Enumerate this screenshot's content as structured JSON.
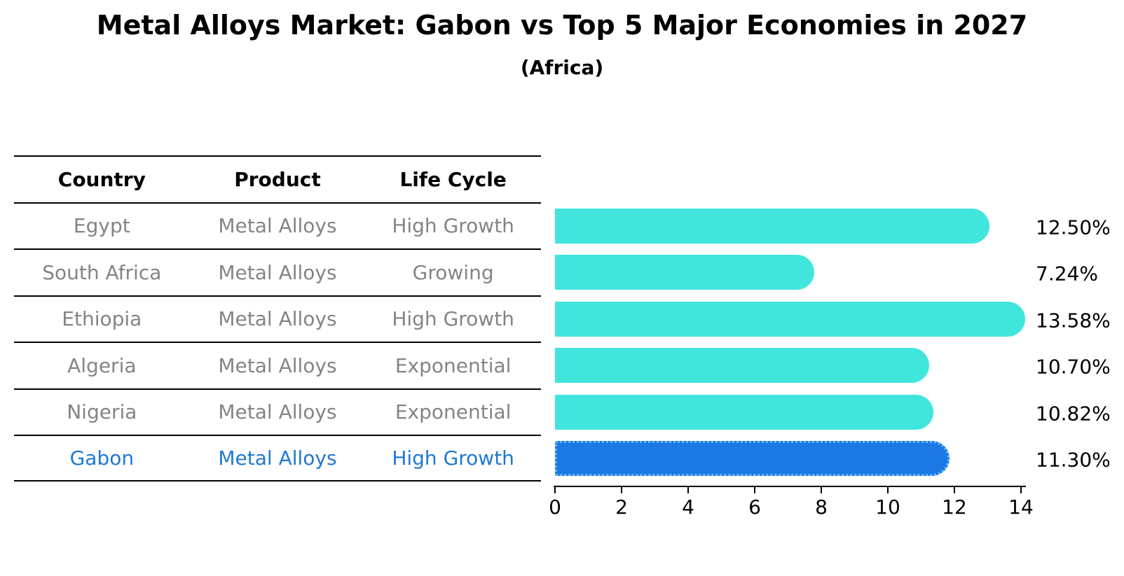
{
  "title": "Metal Alloys Market: Gabon vs Top 5 Major Economies in 2027",
  "subtitle": "(Africa)",
  "table": {
    "headers": [
      "Country",
      "Product",
      "Life Cycle"
    ],
    "rows": [
      {
        "country": "Egypt",
        "product": "Metal Alloys",
        "life_cycle": "High Growth"
      },
      {
        "country": "South Africa",
        "product": "Metal Alloys",
        "life_cycle": "Growing"
      },
      {
        "country": "Ethiopia",
        "product": "Metal Alloys",
        "life_cycle": "High Growth"
      },
      {
        "country": "Algeria",
        "product": "Metal Alloys",
        "life_cycle": "Exponential"
      },
      {
        "country": "Nigeria",
        "product": "Metal Alloys",
        "life_cycle": "Exponential"
      },
      {
        "country": "Gabon",
        "product": "Metal Alloys",
        "life_cycle": "High Growth"
      }
    ],
    "highlight_row_index": 5
  },
  "chart_data": {
    "type": "bar",
    "orientation": "horizontal",
    "title": "Metal Alloys Market: Gabon vs Top 5 Major Economies in 2027",
    "subtitle": "(Africa)",
    "categories": [
      "Egypt",
      "South Africa",
      "Ethiopia",
      "Algeria",
      "Nigeria",
      "Gabon"
    ],
    "values": [
      12.5,
      7.24,
      13.58,
      10.7,
      10.82,
      11.3
    ],
    "value_labels": [
      "12.50%",
      "7.24%",
      "13.58%",
      "10.70%",
      "10.82%",
      "11.30%"
    ],
    "xlabel": "",
    "ylabel": "",
    "xlim": [
      0,
      14
    ],
    "x_ticks": [
      0,
      2,
      4,
      6,
      8,
      10,
      12,
      14
    ],
    "x_tick_labels": [
      "0",
      "2",
      "4",
      "6",
      "8",
      "10",
      "12",
      "14"
    ],
    "grid": false,
    "legend": null,
    "highlight_index": 5,
    "bar_color": "#40e6dc",
    "highlight_bar_color": "#1c78e4",
    "highlight_bar_edge_color": "#6cb8f4"
  },
  "colors": {
    "background": "#ffffff",
    "title_text": "#000000",
    "table_text": "#848484",
    "table_header_text": "#000000",
    "highlight_text": "#1f78d4",
    "axis": "#000000",
    "value_label_text": "#000000"
  }
}
